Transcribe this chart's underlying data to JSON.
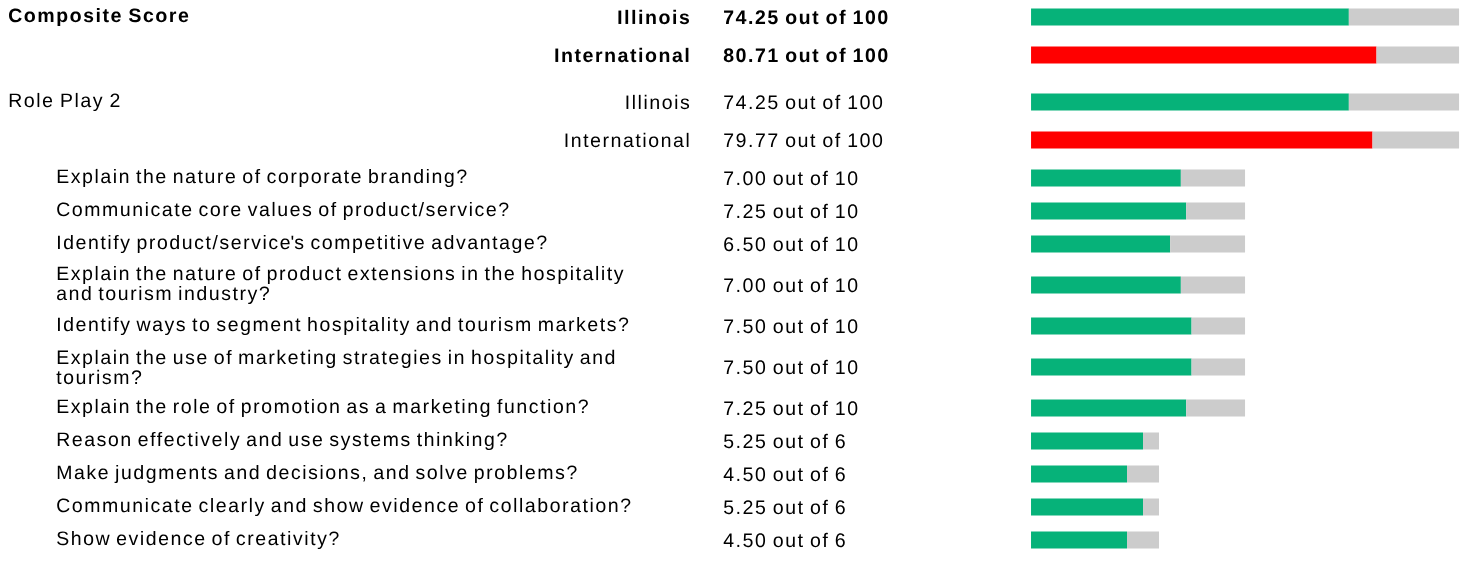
{
  "chart_data": [
    {
      "type": "bar",
      "orientation": "horizontal",
      "stacked": true,
      "annotations": [
        "Composite Score",
        "Role Play 2"
      ],
      "categories": [
        "Illinois",
        "International",
        "Illinois",
        "International"
      ],
      "series": [
        {
          "colors": [
            "#06b279",
            "#ff0000",
            "#06b279",
            "#ff0000"
          ],
          "values": [
            74.25,
            80.71,
            74.25,
            79.77
          ],
          "value_labels": [
            "74.25 out of 100",
            "80.71 out of 100",
            "74.25 out of 100",
            "79.77 out of 100"
          ]
        },
        {
          "color": "#cccccc",
          "values": [
            25.75,
            19.29,
            25.75,
            20.23
          ]
        }
      ]
    },
    {
      "type": "bar",
      "orientation": "horizontal",
      "stacked": true,
      "categories": [
        "Explain the nature of corporate branding?",
        "Communicate core values of product/service?",
        "Identify product/service's competitive advantage?",
        "Explain the nature of product extensions in the hospitality and tourism industry?",
        "Identify ways to segment hospitality and tourism markets?",
        "Explain the use of marketing strategies in hospitality and tourism?",
        "Explain the role of promotion as a marketing function?"
      ],
      "series": [
        {
          "color": "#06b279",
          "values": [
            7.0,
            7.25,
            6.5,
            7.0,
            7.5,
            7.5,
            7.25
          ],
          "value_labels": [
            "7.00 out of 10",
            "7.25 out of 10",
            "6.50 out of 10",
            "7.00 out of 10",
            "7.50 out of 10",
            "7.50 out of 10",
            "7.25 out of 10"
          ]
        },
        {
          "color": "#cccccc",
          "values": [
            3.0,
            2.75,
            3.5,
            3.0,
            2.5,
            2.5,
            2.75
          ]
        }
      ]
    },
    {
      "type": "bar",
      "orientation": "horizontal",
      "stacked": true,
      "categories": [
        "Reason effectively and use systems thinking?",
        "Make judgments and decisions, and solve problems?",
        "Communicate clearly and show evidence of collaboration?",
        "Show evidence of creativity?"
      ],
      "series": [
        {
          "color": "#06b279",
          "values": [
            5.25,
            4.5,
            5.25,
            4.5
          ],
          "value_labels": [
            "5.25 out of 6",
            "4.50 out of 6",
            "5.25 out of 6",
            "4.50 out of 6"
          ]
        },
        {
          "color": "#cccccc",
          "values": [
            0.75,
            1.5,
            0.75,
            1.5
          ]
        }
      ]
    }
  ]
}
